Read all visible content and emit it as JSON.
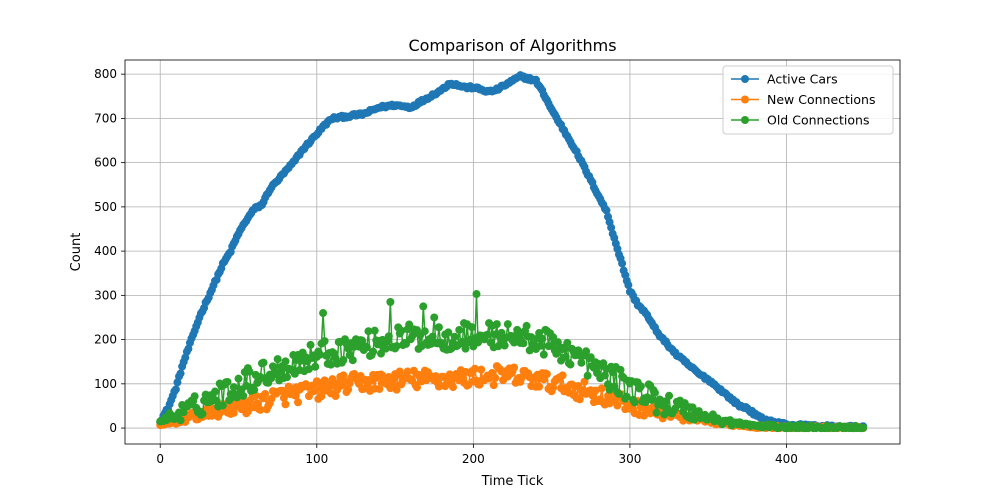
{
  "chart_data": {
    "type": "line",
    "title": "Comparison of Algorithms",
    "xlabel": "Time Tick",
    "ylabel": "Count",
    "xlim": [
      -22.5,
      472.5
    ],
    "ylim": [
      -36,
      832
    ],
    "xticks": [
      0,
      100,
      200,
      300,
      400
    ],
    "yticks": [
      0,
      100,
      200,
      300,
      400,
      500,
      600,
      700,
      800
    ],
    "grid": true,
    "legend_position": "top-right",
    "markers": true,
    "n_points": 450,
    "series": [
      {
        "name": "Active Cars",
        "color": "#1f77b4",
        "keypoints": [
          [
            0,
            15
          ],
          [
            5,
            45
          ],
          [
            10,
            90
          ],
          [
            15,
            150
          ],
          [
            20,
            200
          ],
          [
            25,
            250
          ],
          [
            30,
            290
          ],
          [
            35,
            330
          ],
          [
            40,
            370
          ],
          [
            45,
            400
          ],
          [
            50,
            440
          ],
          [
            55,
            470
          ],
          [
            60,
            495
          ],
          [
            65,
            505
          ],
          [
            70,
            540
          ],
          [
            75,
            560
          ],
          [
            80,
            580
          ],
          [
            85,
            600
          ],
          [
            90,
            625
          ],
          [
            95,
            645
          ],
          [
            100,
            665
          ],
          [
            105,
            685
          ],
          [
            110,
            700
          ],
          [
            120,
            705
          ],
          [
            130,
            710
          ],
          [
            140,
            725
          ],
          [
            150,
            730
          ],
          [
            160,
            725
          ],
          [
            170,
            745
          ],
          [
            180,
            765
          ],
          [
            185,
            780
          ],
          [
            190,
            775
          ],
          [
            195,
            770
          ],
          [
            200,
            770
          ],
          [
            205,
            765
          ],
          [
            210,
            760
          ],
          [
            215,
            765
          ],
          [
            220,
            775
          ],
          [
            230,
            795
          ],
          [
            235,
            790
          ],
          [
            240,
            785
          ],
          [
            245,
            755
          ],
          [
            250,
            720
          ],
          [
            255,
            690
          ],
          [
            260,
            660
          ],
          [
            265,
            630
          ],
          [
            270,
            595
          ],
          [
            275,
            560
          ],
          [
            280,
            525
          ],
          [
            285,
            490
          ],
          [
            290,
            430
          ],
          [
            295,
            370
          ],
          [
            300,
            310
          ],
          [
            305,
            280
          ],
          [
            310,
            260
          ],
          [
            315,
            230
          ],
          [
            320,
            205
          ],
          [
            325,
            185
          ],
          [
            330,
            165
          ],
          [
            335,
            150
          ],
          [
            340,
            135
          ],
          [
            345,
            120
          ],
          [
            350,
            110
          ],
          [
            355,
            95
          ],
          [
            360,
            80
          ],
          [
            365,
            65
          ],
          [
            370,
            50
          ],
          [
            375,
            45
          ],
          [
            380,
            30
          ],
          [
            385,
            20
          ],
          [
            390,
            15
          ],
          [
            400,
            8
          ],
          [
            420,
            4
          ],
          [
            449,
            2
          ]
        ]
      },
      {
        "name": "New Connections",
        "color": "#ff7f0e",
        "keypoints": [
          [
            0,
            5
          ],
          [
            20,
            25
          ],
          [
            40,
            40
          ],
          [
            60,
            55
          ],
          [
            80,
            75
          ],
          [
            100,
            85
          ],
          [
            120,
            100
          ],
          [
            140,
            105
          ],
          [
            160,
            110
          ],
          [
            180,
            110
          ],
          [
            200,
            115
          ],
          [
            220,
            120
          ],
          [
            240,
            110
          ],
          [
            260,
            95
          ],
          [
            280,
            75
          ],
          [
            300,
            50
          ],
          [
            320,
            35
          ],
          [
            340,
            20
          ],
          [
            360,
            10
          ],
          [
            380,
            3
          ],
          [
            400,
            1
          ],
          [
            449,
            0
          ]
        ],
        "noise": 22
      },
      {
        "name": "Old Connections",
        "color": "#2ca02c",
        "keypoints": [
          [
            0,
            15
          ],
          [
            20,
            45
          ],
          [
            40,
            80
          ],
          [
            60,
            115
          ],
          [
            80,
            140
          ],
          [
            100,
            165
          ],
          [
            120,
            180
          ],
          [
            140,
            195
          ],
          [
            160,
            205
          ],
          [
            180,
            205
          ],
          [
            200,
            210
          ],
          [
            220,
            210
          ],
          [
            240,
            200
          ],
          [
            260,
            175
          ],
          [
            280,
            130
          ],
          [
            300,
            90
          ],
          [
            320,
            60
          ],
          [
            340,
            35
          ],
          [
            360,
            15
          ],
          [
            380,
            5
          ],
          [
            400,
            2
          ],
          [
            449,
            1
          ]
        ],
        "noise": 30,
        "spikes": [
          [
            104,
            260
          ],
          [
            147,
            285
          ],
          [
            168,
            275
          ],
          [
            202,
            303
          ],
          [
            175,
            250
          ]
        ]
      }
    ]
  }
}
